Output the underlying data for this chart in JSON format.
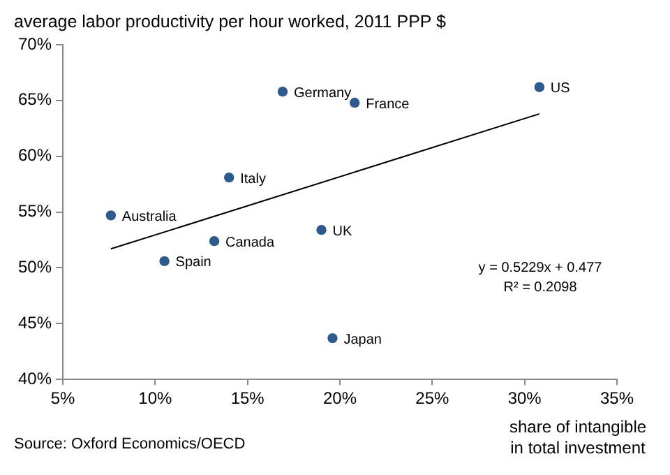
{
  "chart_data": {
    "type": "scatter",
    "ylabel": "average labor productivity per hour worked, 2011 PPP $",
    "xlabel": "share of intangible in total investment",
    "series": [
      {
        "type": "scatter",
        "color": "#2e5a8c",
        "x": [
          16.9,
          20.8,
          30.8,
          14.0,
          7.6,
          19.0,
          13.2,
          10.5,
          19.6
        ],
        "values": [
          65.8,
          64.8,
          66.2,
          58.1,
          54.7,
          53.4,
          52.4,
          50.6,
          43.7
        ]
      },
      {
        "type": "line",
        "color": "#000000",
        "marker": "none",
        "x": [
          7.6,
          30.8
        ],
        "values": [
          51.7,
          63.8
        ]
      }
    ],
    "annotations": [
      {
        "text": "Germany",
        "x": 16.9,
        "y": 65.8
      },
      {
        "text": "France",
        "x": 20.8,
        "y": 64.8
      },
      {
        "text": "US",
        "x": 30.8,
        "y": 66.2
      },
      {
        "text": "Italy",
        "x": 14.0,
        "y": 58.1
      },
      {
        "text": "Australia",
        "x": 7.6,
        "y": 54.7
      },
      {
        "text": "UK",
        "x": 19.0,
        "y": 53.4
      },
      {
        "text": "Canada",
        "x": 13.2,
        "y": 52.4
      },
      {
        "text": "Spain",
        "x": 10.5,
        "y": 50.6
      },
      {
        "text": "Japan",
        "x": 19.6,
        "y": 43.7
      },
      "y = 0.5229x + 0.477",
      "R² = 0.2098",
      "Source: Oxford Economics/OECD"
    ],
    "xlim": [
      5,
      35
    ],
    "xticks": [
      {
        "value": 5,
        "label": "5%"
      },
      {
        "value": 10,
        "label": "10%"
      },
      {
        "value": 15,
        "label": "15%"
      },
      {
        "value": 20,
        "label": "20%"
      },
      {
        "value": 25,
        "label": "25%"
      },
      {
        "value": 30,
        "label": "30%"
      },
      {
        "value": 35,
        "label": "35%"
      }
    ],
    "ylim": [
      40,
      70
    ],
    "yticks": [
      {
        "value": 40,
        "label": "40%"
      },
      {
        "value": 45,
        "label": "45%"
      },
      {
        "value": 50,
        "label": "50%"
      },
      {
        "value": 55,
        "label": "55%"
      },
      {
        "value": 60,
        "label": "60%"
      },
      {
        "value": 65,
        "label": "65%"
      },
      {
        "value": 70,
        "label": "70%"
      }
    ],
    "grid": false,
    "legend": false,
    "marker": "circle",
    "line_style": "solid"
  }
}
